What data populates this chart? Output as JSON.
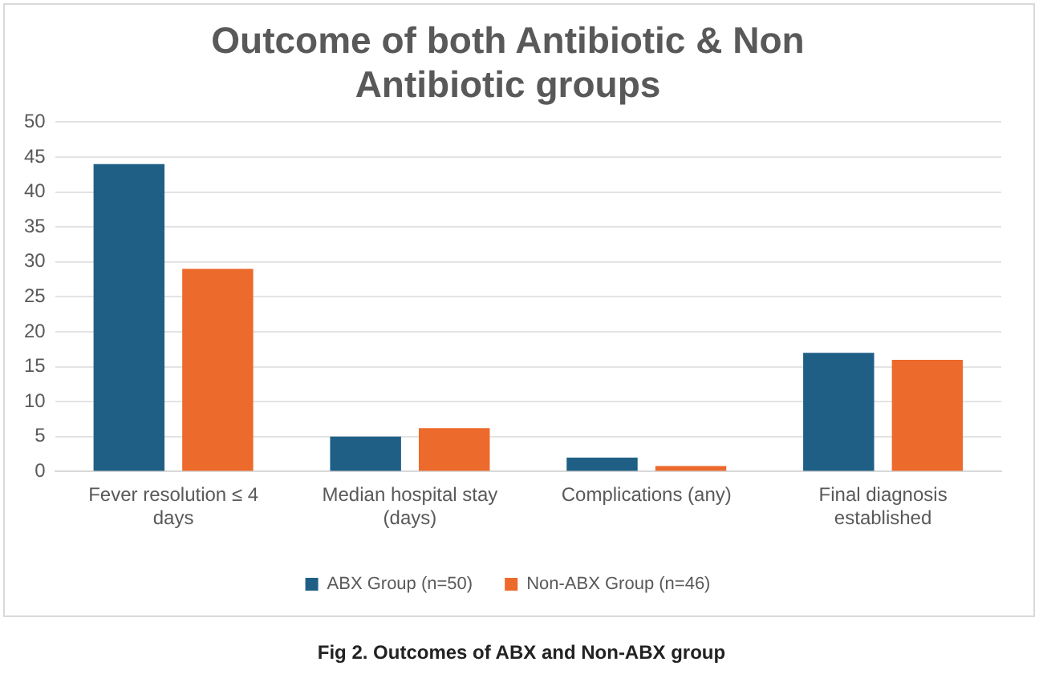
{
  "chart_data": {
    "type": "bar",
    "title": "Outcome of both Antibiotic & Non Antibiotic groups",
    "categories": [
      "Fever resolution ≤ 4 days",
      "Median hospital stay (days)",
      "Complications (any)",
      "Final diagnosis established"
    ],
    "series": [
      {
        "name": "ABX Group (n=50)",
        "color": "#1f5f86",
        "values": [
          44,
          5,
          2,
          17
        ]
      },
      {
        "name": "Non-ABX Group (n=46)",
        "color": "#ec6a2c",
        "values": [
          29,
          6.2,
          0.8,
          16
        ]
      }
    ],
    "ylim": [
      0,
      50
    ],
    "yticks": [
      0,
      5,
      10,
      15,
      20,
      25,
      30,
      35,
      40,
      45,
      50
    ],
    "grid": "y",
    "legend": "bottom",
    "annotations": [
      "Fig 2. Outcomes of ABX and Non-ABX group"
    ]
  }
}
